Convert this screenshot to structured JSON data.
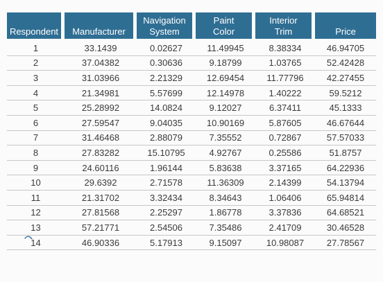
{
  "table": {
    "columns": [
      {
        "lines": [
          "Respondent"
        ]
      },
      {
        "lines": [
          "Manufacturer"
        ]
      },
      {
        "lines": [
          "Navigation",
          "System"
        ]
      },
      {
        "lines": [
          "Paint",
          "Color"
        ]
      },
      {
        "lines": [
          "Interior",
          "Trim"
        ]
      },
      {
        "lines": [
          "Price"
        ]
      }
    ],
    "rows": [
      [
        "1",
        "33.1439",
        "0.02627",
        "11.49945",
        "8.38334",
        "46.94705"
      ],
      [
        "2",
        "37.04382",
        "0.30636",
        "9.18799",
        "1.03765",
        "52.42428"
      ],
      [
        "3",
        "31.03966",
        "2.21329",
        "12.69454",
        "11.77796",
        "42.27455"
      ],
      [
        "4",
        "21.34981",
        "5.57699",
        "12.14978",
        "1.40222",
        "59.5212"
      ],
      [
        "5",
        "25.28992",
        "14.0824",
        "9.12027",
        "6.37411",
        "45.1333"
      ],
      [
        "6",
        "27.59547",
        "9.04035",
        "10.90169",
        "5.87605",
        "46.67644"
      ],
      [
        "7",
        "31.46468",
        "2.88079",
        "7.35552",
        "0.72867",
        "57.57033"
      ],
      [
        "8",
        "27.83282",
        "15.10795",
        "4.92767",
        "0.25586",
        "51.8757"
      ],
      [
        "9",
        "24.60116",
        "1.96144",
        "5.83638",
        "3.37165",
        "64.22936"
      ],
      [
        "10",
        "29.6392",
        "2.71578",
        "11.36309",
        "2.14399",
        "54.13794"
      ],
      [
        "11",
        "21.31702",
        "3.32434",
        "8.34643",
        "1.06406",
        "65.94814"
      ],
      [
        "12",
        "27.81568",
        "2.25297",
        "1.86778",
        "3.37836",
        "64.68521"
      ],
      [
        "13",
        "57.21771",
        "2.54506",
        "7.35486",
        "2.41709",
        "30.46528"
      ],
      [
        "14",
        "46.90336",
        "5.17913",
        "9.15097",
        "10.98087",
        "27.78567"
      ]
    ]
  },
  "colors": {
    "header_bg": "#2f6e93",
    "header_text": "#ffffff",
    "row_divider": "#c7c7c7",
    "text": "#3a3a3a"
  }
}
